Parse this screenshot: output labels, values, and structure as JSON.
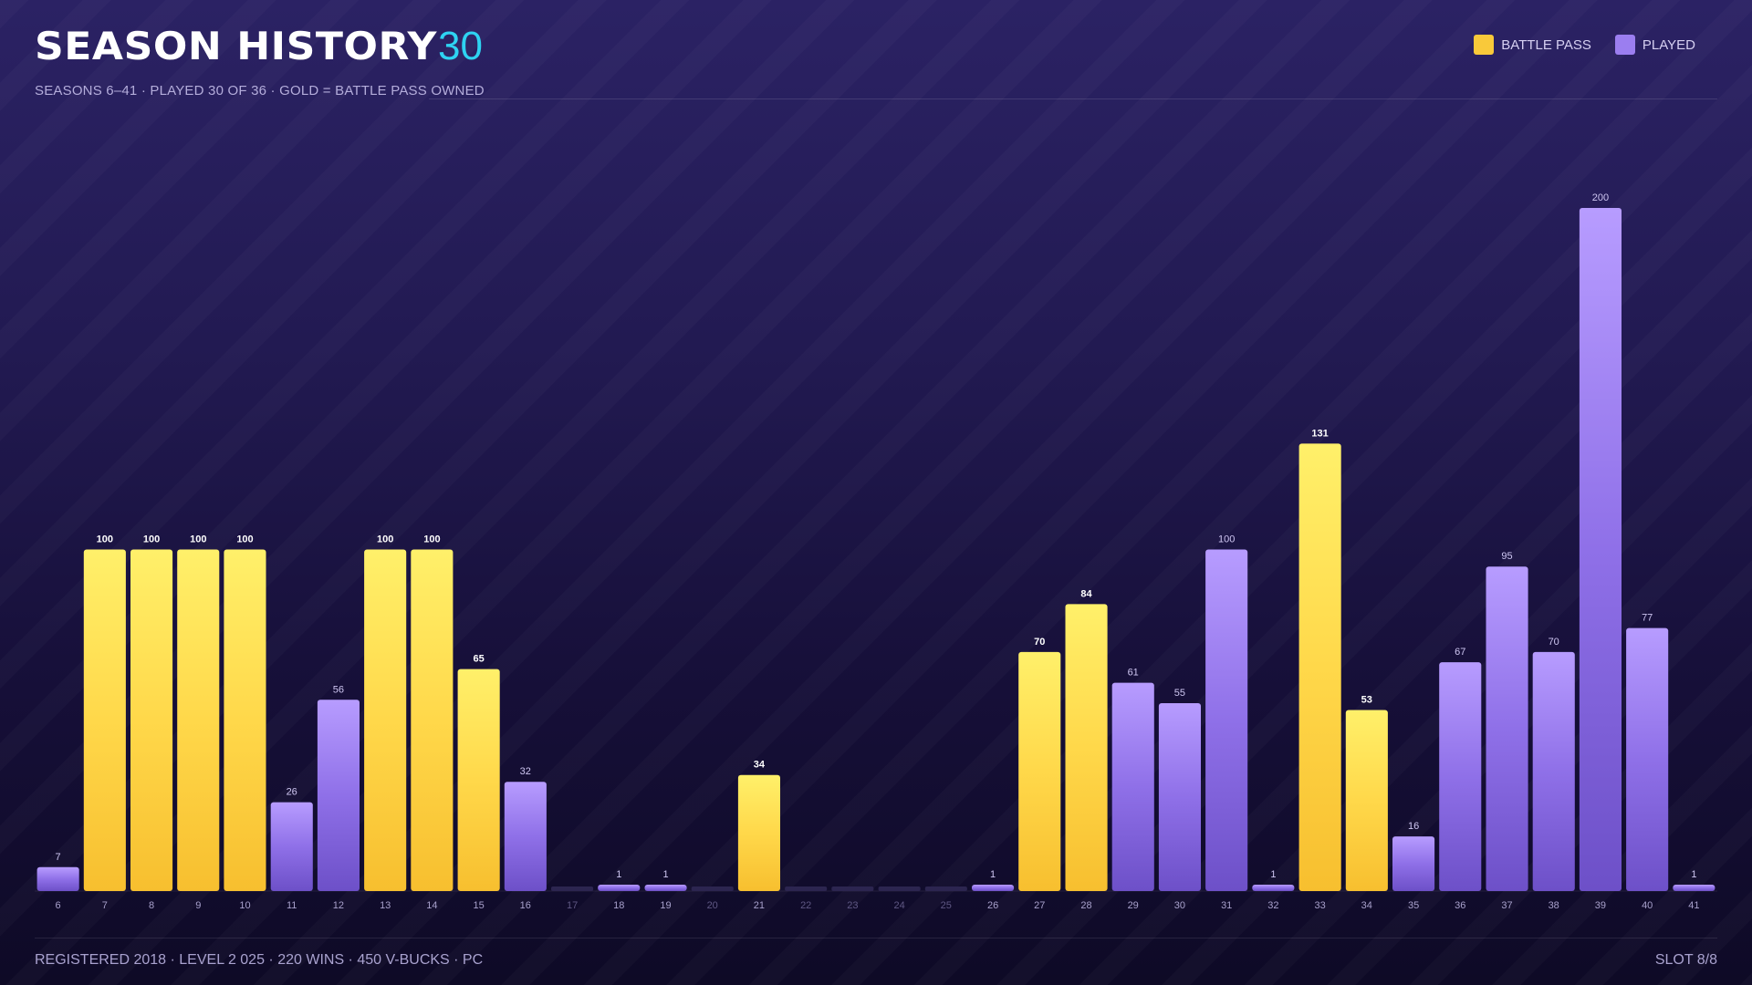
{
  "header": {
    "title": "SEASON HISTORY",
    "count": "30",
    "subtitle": "SEASONS 6–41 · PLAYED 30 OF 36 · GOLD = BATTLE PASS OWNED"
  },
  "legend": {
    "battle_pass_label": "BATTLE PASS",
    "played_label": "PLAYED"
  },
  "colors": {
    "battle_pass": "#f9c93a",
    "played": "#9b7ef0",
    "empty": "#2c2550",
    "accent": "#2ed3f2"
  },
  "footer": {
    "left": "REGISTERED 2018 · LEVEL 2 025 · 220 WINS · 450 V-BUCKS · PC",
    "right": "SLOT 8/8"
  },
  "chart_data": {
    "type": "bar",
    "ylim": [
      0,
      200
    ],
    "categories": [
      "6",
      "7",
      "8",
      "9",
      "10",
      "11",
      "12",
      "13",
      "14",
      "15",
      "16",
      "17",
      "18",
      "19",
      "20",
      "21",
      "22",
      "23",
      "24",
      "25",
      "26",
      "27",
      "28",
      "29",
      "30",
      "31",
      "32",
      "33",
      "34",
      "35",
      "36",
      "37",
      "38",
      "39",
      "40",
      "41"
    ],
    "values": [
      7,
      100,
      100,
      100,
      100,
      26,
      56,
      100,
      100,
      65,
      32,
      0,
      1,
      1,
      0,
      34,
      0,
      0,
      0,
      0,
      1,
      70,
      84,
      61,
      55,
      100,
      1,
      131,
      53,
      16,
      67,
      95,
      70,
      200,
      77,
      1
    ],
    "battle_pass": [
      false,
      true,
      true,
      true,
      true,
      false,
      false,
      true,
      true,
      true,
      false,
      false,
      false,
      false,
      false,
      true,
      false,
      false,
      false,
      false,
      false,
      true,
      true,
      false,
      false,
      false,
      false,
      true,
      true,
      false,
      false,
      false,
      false,
      false,
      false,
      false
    ],
    "series": [
      {
        "name": "BATTLE PASS"
      },
      {
        "name": "PLAYED"
      }
    ]
  }
}
